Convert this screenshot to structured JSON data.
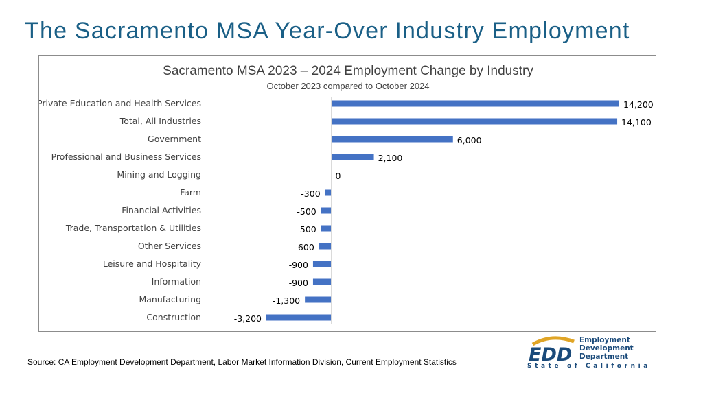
{
  "page": {
    "title": "The Sacramento MSA Year-Over Industry Employment",
    "source": "Source: CA Employment Development Department, Labor Market Information Division, Current Employment Statistics"
  },
  "logo": {
    "mark_text": "EDD",
    "lines": [
      "Employment",
      "Development",
      "Department"
    ],
    "state_text": "State of California",
    "colors": {
      "blue": "#1a4a7a",
      "gold": "#e0a526"
    }
  },
  "chart_data": {
    "type": "bar",
    "orientation": "horizontal",
    "title": "Sacramento MSA 2023 – 2024 Employment Change by Industry",
    "subtitle": "October 2023 compared to October 2024",
    "categories": [
      "Private Education and Health Services",
      "Total, All Industries",
      "Government",
      "Professional and Business Services",
      "Mining and Logging",
      "Farm",
      "Financial Activities",
      "Trade, Transportation & Utilities",
      "Other Services",
      "Leisure and Hospitality",
      "Information",
      "Manufacturing",
      "Construction"
    ],
    "values": [
      14200,
      14100,
      6000,
      2100,
      0,
      -300,
      -500,
      -500,
      -600,
      -900,
      -900,
      -1300,
      -3200
    ],
    "value_labels": [
      "14,200",
      "14,100",
      "6,000",
      "2,100",
      "0",
      "-300",
      "-500",
      "-500",
      "-600",
      "-900",
      "-900",
      "-1,300",
      "-3,200"
    ],
    "xlim": [
      -3200,
      14200
    ],
    "bar_color": "#4472c4",
    "grid": false,
    "legend": "none"
  }
}
